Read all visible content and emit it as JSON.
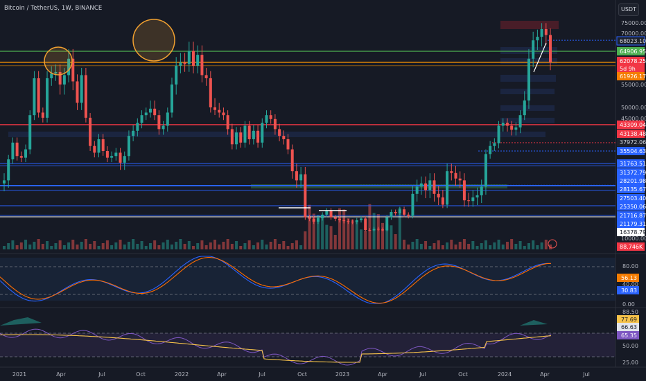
{
  "header": {
    "symbol_title": "Bitcoin / TetherUS, 1W, BINANCE",
    "currency_button": "USDT"
  },
  "colors": {
    "background": "#161a25",
    "up": "#26a69a",
    "down": "#ef5350",
    "green_line": "#4caf50",
    "orange_line": "#ff9800",
    "red_line": "#f23645",
    "blue_line": "#2962ff",
    "white_line": "#ffffff",
    "stoch_k": "#2962ff",
    "stoch_d": "#ff6d00",
    "rsi_line": "#7e57c2",
    "rsi_ma": "#f7c34a"
  },
  "price_axis": {
    "ticks": [
      "75000.00",
      "70000.00",
      "55000.00",
      "50000.00",
      "45000.00",
      "10000.00"
    ],
    "tags": [
      {
        "text": "68023.10",
        "color": "#1e222d",
        "fg": "#d1d4dc",
        "border": "#2962ff"
      },
      {
        "text": "64906.95",
        "color": "#4caf50",
        "fg": "#ffffff"
      },
      {
        "text": "62078.25",
        "color": "#f23645",
        "fg": "#ffffff"
      },
      {
        "text": "5d 9h",
        "color": "#f23645",
        "fg": "#ffffff"
      },
      {
        "text": "61926.17",
        "color": "#f57c00",
        "fg": "#ffffff"
      },
      {
        "text": "43309.04",
        "color": "#f23645",
        "fg": "#ffffff"
      },
      {
        "text": "43138.48",
        "color": "#f23645",
        "fg": "#ffffff"
      },
      {
        "text": "37972.06",
        "color": "#1e222d",
        "fg": "#d1d4dc"
      },
      {
        "text": "35504.63",
        "color": "#2962ff",
        "fg": "#ffffff"
      },
      {
        "text": "31763.51",
        "color": "#2962ff",
        "fg": "#ffffff"
      },
      {
        "text": "31372.79",
        "color": "#2962ff",
        "fg": "#ffffff"
      },
      {
        "text": "28201.98",
        "color": "#2962ff",
        "fg": "#ffffff"
      },
      {
        "text": "28135.67",
        "color": "#2962ff",
        "fg": "#ffffff"
      },
      {
        "text": "27503.40",
        "color": "#2962ff",
        "fg": "#ffffff"
      },
      {
        "text": "25350.06",
        "color": "#2962ff",
        "fg": "#ffffff"
      },
      {
        "text": "21716.87",
        "color": "#2962ff",
        "fg": "#ffffff"
      },
      {
        "text": "21179.31",
        "color": "#2962ff",
        "fg": "#ffffff"
      },
      {
        "text": "16378.79",
        "color": "#ffffff",
        "fg": "#131722"
      },
      {
        "text": "88.746K",
        "color": "#f23645",
        "fg": "#ffffff"
      }
    ]
  },
  "stoch_axis": {
    "ticks": [
      "80.00",
      "40.00",
      "0.00"
    ],
    "tags": [
      {
        "text": "56.13",
        "color": "#f57c00",
        "fg": "#ffffff"
      },
      {
        "text": "30.83",
        "color": "#2962ff",
        "fg": "#ffffff"
      }
    ]
  },
  "rsi_axis": {
    "ticks": [
      "88.50",
      "50.00",
      "25.00"
    ],
    "tags": [
      {
        "text": "77.69",
        "color": "#f7c34a",
        "fg": "#131722"
      },
      {
        "text": "66.63",
        "color": "#e0e3eb",
        "fg": "#131722"
      },
      {
        "text": "65.35",
        "color": "#7e57c2",
        "fg": "#ffffff"
      }
    ]
  },
  "time_axis": [
    "2021",
    "Apr",
    "Jul",
    "Oct",
    "2022",
    "Apr",
    "Jul",
    "Oct",
    "2023",
    "Apr",
    "Jul",
    "Oct",
    "2024",
    "Apr",
    "Jul"
  ],
  "chart_data": {
    "type": "candlestick",
    "title": "Bitcoin / TetherUS, 1W, BINANCE",
    "weekly_close_approx": [
      29000,
      33000,
      38000,
      34000,
      33500,
      36000,
      47000,
      57000,
      48000,
      46000,
      57000,
      58500,
      59000,
      55000,
      58000,
      63000,
      56000,
      51000,
      58000,
      46000,
      37000,
      35000,
      39000,
      35500,
      33500,
      34000,
      35000,
      32000,
      34000,
      40000,
      41500,
      44000,
      47000,
      48000,
      49500,
      47000,
      42000,
      43000,
      48000,
      55000,
      61000,
      62000,
      61500,
      65000,
      61000,
      64000,
      58000,
      57000,
      50000,
      49000,
      48000,
      47000,
      42000,
      37500,
      41000,
      38000,
      43000,
      39000,
      41500,
      38000,
      44000,
      47000,
      45500,
      42000,
      40000,
      39000,
      36000,
      30500,
      29000,
      30000,
      21000,
      20500,
      19500,
      20700,
      22000,
      23500,
      21000,
      20500,
      20000,
      19700,
      19500,
      19400,
      20000,
      20600,
      16600,
      16500,
      17000,
      16800,
      16500,
      21000,
      23000,
      22500,
      24000,
      22000,
      21500,
      27000,
      28000,
      28500,
      27500,
      29000,
      27000,
      26500,
      25500,
      30500,
      30200,
      29300,
      29000,
      26100,
      26000,
      26500,
      26800,
      28000,
      34600,
      37000,
      37800,
      43000,
      44000,
      43000,
      41800,
      42500,
      47000,
      51500,
      63000,
      68000,
      69000,
      72000,
      69500,
      62078
    ]
  }
}
